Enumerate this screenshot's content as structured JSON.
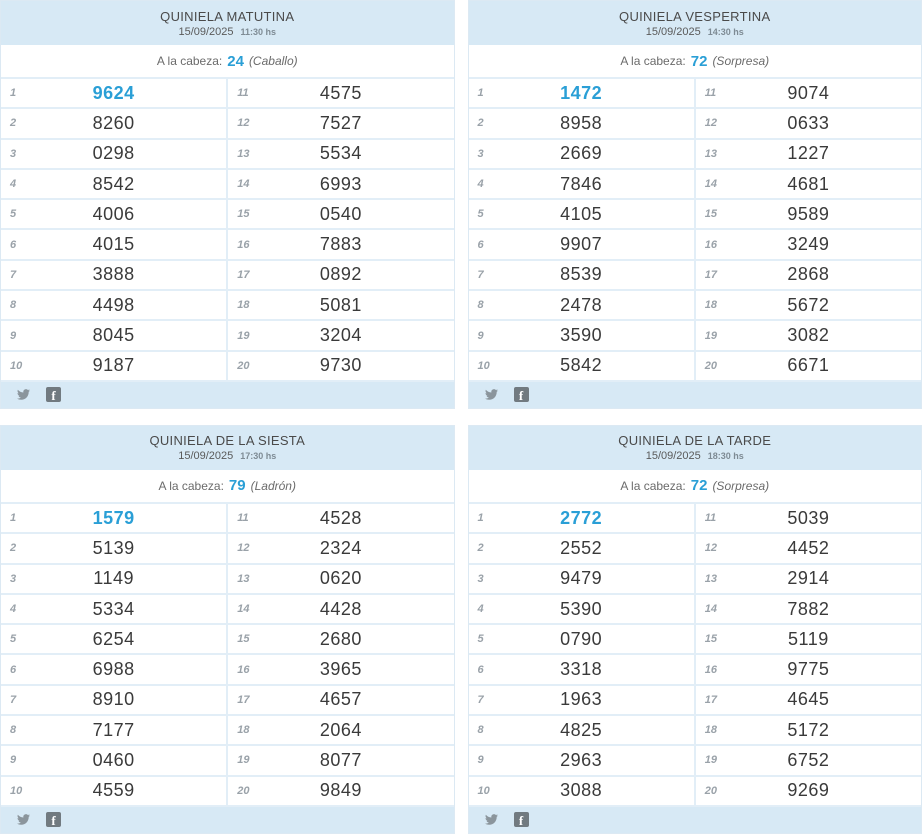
{
  "colors": {
    "accent_blue": "#2a9fd6",
    "panel_band_bg": "#d7e9f5",
    "row_border": "#e2eef7",
    "value_text": "#3a3a3a",
    "position_text": "#9aa2a9"
  },
  "icons": {
    "twitter": "twitter-bird",
    "facebook": "facebook-f",
    "facebook_glyph": "f"
  },
  "panels": [
    {
      "title": "QUINIELA MATUTINA",
      "date": "15/09/2025",
      "time": "11:30 hs",
      "cabeza_label": "A la cabeza:",
      "cabeza_number": "24",
      "cabeza_name": "(Caballo)",
      "rows": [
        {
          "n1": "1",
          "v1": "9624",
          "n2": "11",
          "v2": "4575"
        },
        {
          "n1": "2",
          "v1": "8260",
          "n2": "12",
          "v2": "7527"
        },
        {
          "n1": "3",
          "v1": "0298",
          "n2": "13",
          "v2": "5534"
        },
        {
          "n1": "4",
          "v1": "8542",
          "n2": "14",
          "v2": "6993"
        },
        {
          "n1": "5",
          "v1": "4006",
          "n2": "15",
          "v2": "0540"
        },
        {
          "n1": "6",
          "v1": "4015",
          "n2": "16",
          "v2": "7883"
        },
        {
          "n1": "7",
          "v1": "3888",
          "n2": "17",
          "v2": "0892"
        },
        {
          "n1": "8",
          "v1": "4498",
          "n2": "18",
          "v2": "5081"
        },
        {
          "n1": "9",
          "v1": "8045",
          "n2": "19",
          "v2": "3204"
        },
        {
          "n1": "10",
          "v1": "9187",
          "n2": "20",
          "v2": "9730"
        }
      ]
    },
    {
      "title": "QUINIELA VESPERTINA",
      "date": "15/09/2025",
      "time": "14:30 hs",
      "cabeza_label": "A la cabeza:",
      "cabeza_number": "72",
      "cabeza_name": "(Sorpresa)",
      "rows": [
        {
          "n1": "1",
          "v1": "1472",
          "n2": "11",
          "v2": "9074"
        },
        {
          "n1": "2",
          "v1": "8958",
          "n2": "12",
          "v2": "0633"
        },
        {
          "n1": "3",
          "v1": "2669",
          "n2": "13",
          "v2": "1227"
        },
        {
          "n1": "4",
          "v1": "7846",
          "n2": "14",
          "v2": "4681"
        },
        {
          "n1": "5",
          "v1": "4105",
          "n2": "15",
          "v2": "9589"
        },
        {
          "n1": "6",
          "v1": "9907",
          "n2": "16",
          "v2": "3249"
        },
        {
          "n1": "7",
          "v1": "8539",
          "n2": "17",
          "v2": "2868"
        },
        {
          "n1": "8",
          "v1": "2478",
          "n2": "18",
          "v2": "5672"
        },
        {
          "n1": "9",
          "v1": "3590",
          "n2": "19",
          "v2": "3082"
        },
        {
          "n1": "10",
          "v1": "5842",
          "n2": "20",
          "v2": "6671"
        }
      ]
    },
    {
      "title": "QUINIELA DE LA SIESTA",
      "date": "15/09/2025",
      "time": "17:30 hs",
      "cabeza_label": "A la cabeza:",
      "cabeza_number": "79",
      "cabeza_name": "(Ladrón)",
      "rows": [
        {
          "n1": "1",
          "v1": "1579",
          "n2": "11",
          "v2": "4528"
        },
        {
          "n1": "2",
          "v1": "5139",
          "n2": "12",
          "v2": "2324"
        },
        {
          "n1": "3",
          "v1": "1149",
          "n2": "13",
          "v2": "0620"
        },
        {
          "n1": "4",
          "v1": "5334",
          "n2": "14",
          "v2": "4428"
        },
        {
          "n1": "5",
          "v1": "6254",
          "n2": "15",
          "v2": "2680"
        },
        {
          "n1": "6",
          "v1": "6988",
          "n2": "16",
          "v2": "3965"
        },
        {
          "n1": "7",
          "v1": "8910",
          "n2": "17",
          "v2": "4657"
        },
        {
          "n1": "8",
          "v1": "7177",
          "n2": "18",
          "v2": "2064"
        },
        {
          "n1": "9",
          "v1": "0460",
          "n2": "19",
          "v2": "8077"
        },
        {
          "n1": "10",
          "v1": "4559",
          "n2": "20",
          "v2": "9849"
        }
      ]
    },
    {
      "title": "QUINIELA DE LA TARDE",
      "date": "15/09/2025",
      "time": "18:30 hs",
      "cabeza_label": "A la cabeza:",
      "cabeza_number": "72",
      "cabeza_name": "(Sorpresa)",
      "rows": [
        {
          "n1": "1",
          "v1": "2772",
          "n2": "11",
          "v2": "5039"
        },
        {
          "n1": "2",
          "v1": "2552",
          "n2": "12",
          "v2": "4452"
        },
        {
          "n1": "3",
          "v1": "9479",
          "n2": "13",
          "v2": "2914"
        },
        {
          "n1": "4",
          "v1": "5390",
          "n2": "14",
          "v2": "7882"
        },
        {
          "n1": "5",
          "v1": "0790",
          "n2": "15",
          "v2": "5119"
        },
        {
          "n1": "6",
          "v1": "3318",
          "n2": "16",
          "v2": "9775"
        },
        {
          "n1": "7",
          "v1": "1963",
          "n2": "17",
          "v2": "4645"
        },
        {
          "n1": "8",
          "v1": "4825",
          "n2": "18",
          "v2": "5172"
        },
        {
          "n1": "9",
          "v1": "2963",
          "n2": "19",
          "v2": "6752"
        },
        {
          "n1": "10",
          "v1": "3088",
          "n2": "20",
          "v2": "9269"
        }
      ]
    }
  ]
}
